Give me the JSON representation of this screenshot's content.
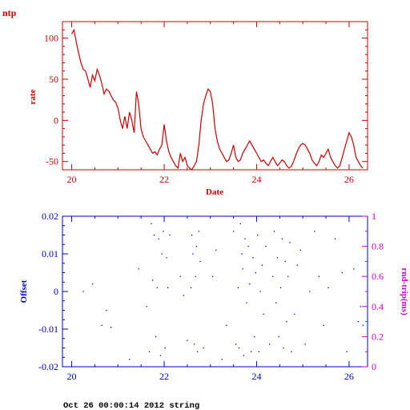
{
  "page_title": "ntp",
  "footer_text": "Oct 26 00:00:14 2012 string",
  "colors": {
    "rate": "#cc0000",
    "offset": "#0000cc",
    "roundtrip": "#cc00cc",
    "text": "#000000"
  },
  "chart_data": [
    {
      "type": "line",
      "title": "",
      "xlabel": "Date",
      "ylabel": "rate",
      "xlim": [
        19.8,
        26.4
      ],
      "ylim": [
        -60,
        120
      ],
      "x_ticks": [
        "20",
        "22",
        "24",
        "26"
      ],
      "y_ticks": [
        "100",
        "50",
        "0",
        "-50"
      ],
      "series": [
        {
          "x": [
            20.0,
            20.05,
            20.1,
            20.15,
            20.2,
            20.25,
            20.3,
            20.35,
            20.4,
            20.45,
            20.5,
            20.55,
            20.6,
            20.65,
            20.7,
            20.75,
            20.8,
            20.85,
            20.9,
            20.95,
            21.0,
            21.05,
            21.1,
            21.15,
            21.2,
            21.25,
            21.3,
            21.35,
            21.4,
            21.45,
            21.5,
            21.55,
            21.6,
            21.65,
            21.7,
            21.75,
            21.8,
            21.85,
            21.9,
            21.95,
            22.0,
            22.05,
            22.1,
            22.15,
            22.2,
            22.25,
            22.3,
            22.35,
            22.4,
            22.45,
            22.5,
            22.55,
            22.6,
            22.65,
            22.7,
            22.75,
            22.8,
            22.85,
            22.9,
            22.95,
            23.0,
            23.05,
            23.1,
            23.15,
            23.2,
            23.25,
            23.3,
            23.35,
            23.4,
            23.45,
            23.5,
            23.55,
            23.6,
            23.65,
            23.7,
            23.75,
            23.8,
            23.85,
            23.9,
            23.95,
            24.0,
            24.05,
            24.1,
            24.15,
            24.2,
            24.25,
            24.3,
            24.35,
            24.4,
            24.45,
            24.5,
            24.55,
            24.6,
            24.65,
            24.7,
            24.75,
            24.8,
            24.85,
            24.9,
            24.95,
            25.0,
            25.05,
            25.1,
            25.15,
            25.2,
            25.25,
            25.3,
            25.35,
            25.4,
            25.45,
            25.5,
            25.55,
            25.6,
            25.65,
            25.7,
            25.75,
            25.8,
            25.85,
            25.9,
            25.95,
            26.0,
            26.05,
            26.1,
            26.15,
            26.2,
            26.25,
            26.3
          ],
          "y": [
            105,
            110,
            95,
            82,
            70,
            62,
            60,
            50,
            40,
            55,
            48,
            62,
            55,
            45,
            32,
            38,
            36,
            30,
            25,
            22,
            15,
            0,
            -10,
            5,
            -10,
            10,
            0,
            -15,
            35,
            20,
            -10,
            -20,
            -25,
            -30,
            -35,
            -40,
            -38,
            -42,
            -35,
            -30,
            -5,
            -25,
            -38,
            -45,
            -50,
            -55,
            -58,
            -40,
            -50,
            -45,
            -55,
            -58,
            -60,
            -55,
            -50,
            -30,
            0,
            20,
            30,
            38,
            35,
            20,
            -10,
            -25,
            -35,
            -40,
            -45,
            -50,
            -48,
            -40,
            -30,
            -45,
            -50,
            -48,
            -40,
            -35,
            -30,
            -25,
            -30,
            -35,
            -40,
            -45,
            -50,
            -48,
            -52,
            -55,
            -50,
            -45,
            -50,
            -55,
            -52,
            -48,
            -50,
            -55,
            -58,
            -56,
            -50,
            -42,
            -35,
            -30,
            -28,
            -30,
            -35,
            -40,
            -48,
            -52,
            -55,
            -50,
            -42,
            -45,
            -40,
            -35,
            -45,
            -50,
            -55,
            -58,
            -55,
            -45,
            -35,
            -25,
            -15,
            -20,
            -30,
            -45,
            -50,
            -55,
            -58
          ]
        }
      ]
    },
    {
      "type": "scatter",
      "title": "",
      "xlabel": "",
      "ylabel": "Offset",
      "y2label": "rnd-trip(ms)",
      "xlim": [
        19.8,
        26.4
      ],
      "ylim": [
        -0.02,
        0.02
      ],
      "y2lim": [
        0,
        1
      ],
      "x_ticks": [
        "20",
        "22",
        "24",
        "26"
      ],
      "y_ticks": [
        "0.02",
        "0.01",
        "0",
        "-0.01",
        "-0.02"
      ],
      "y2_ticks": [
        "1",
        "0.8",
        "0.6",
        "0.4",
        "0.2",
        "0"
      ],
      "series": [
        {
          "x": [
            20.25,
            20.45,
            20.65,
            20.75,
            20.85,
            21.25,
            21.45,
            21.62,
            21.68,
            21.72,
            21.75,
            21.78,
            21.82,
            21.85,
            21.88,
            21.92,
            21.95,
            21.98,
            22.02,
            22.05,
            22.08,
            22.12,
            22.35,
            22.42,
            22.5,
            22.58,
            22.6,
            22.62,
            22.65,
            22.68,
            22.7,
            22.72,
            22.75,
            22.78,
            22.85,
            23.05,
            23.12,
            23.25,
            23.35,
            23.5,
            23.55,
            23.6,
            23.62,
            23.65,
            23.68,
            23.7,
            23.72,
            23.75,
            23.78,
            23.82,
            23.85,
            23.88,
            23.92,
            23.95,
            23.98,
            24.02,
            24.05,
            24.08,
            24.12,
            24.15,
            24.2,
            24.28,
            24.35,
            24.38,
            24.42,
            24.45,
            24.48,
            24.52,
            24.55,
            24.58,
            24.62,
            24.65,
            24.68,
            24.72,
            24.75,
            24.82,
            24.88,
            24.95,
            25.05,
            25.15,
            25.25,
            25.35,
            25.45,
            25.55,
            25.7,
            25.85,
            25.95,
            26.1,
            26.2,
            26.25,
            26.3
          ],
          "y": [
            0.0,
            0.002,
            -0.009,
            -0.005,
            -0.0095,
            -0.018,
            0.006,
            -0.004,
            -0.016,
            0.018,
            0.003,
            0.015,
            -0.012,
            0.001,
            0.014,
            -0.017,
            0.01,
            0.016,
            -0.015,
            0.009,
            0.001,
            0.015,
            0.004,
            -0.001,
            -0.013,
            0.001,
            0.015,
            0.01,
            -0.014,
            0.004,
            0.012,
            -0.016,
            0.016,
            0.008,
            -0.015,
            0.004,
            0.011,
            -0.018,
            -0.009,
            0.016,
            -0.014,
            0.001,
            -0.015,
            0.018,
            0.01,
            0.006,
            -0.017,
            0.014,
            -0.003,
            0.012,
            0.002,
            -0.016,
            0.009,
            -0.012,
            0.005,
            0.015,
            -0.016,
            0.0,
            0.007,
            -0.006,
            0.012,
            -0.014,
            0.004,
            0.016,
            -0.003,
            0.009,
            -0.012,
            0.001,
            0.014,
            -0.015,
            0.008,
            -0.008,
            0.004,
            0.013,
            -0.016,
            -0.006,
            0.007,
            0.011,
            -0.014,
            0.0,
            0.016,
            0.004,
            -0.009,
            0.001,
            0.014,
            0.005,
            -0.016,
            0.006,
            -0.008,
            -0.004,
            -0.009
          ]
        }
      ]
    }
  ]
}
